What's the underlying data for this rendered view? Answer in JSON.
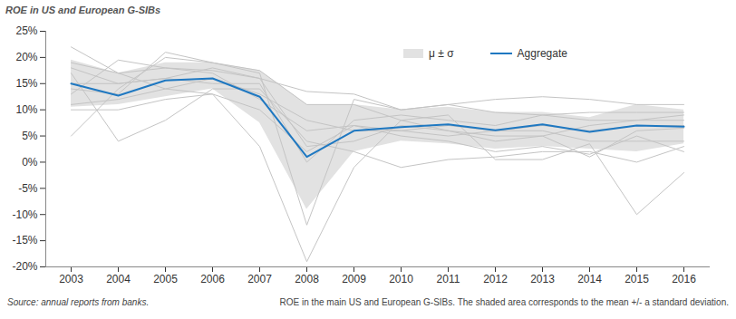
{
  "chart_data": {
    "type": "line",
    "title": "ROE in US and European G-SIBs",
    "source": "Source: annual reports from banks.",
    "caption": "ROE in the main US and European G-SIBs. The shaded area corresponds to the mean +/- a standard deviation.",
    "x": [
      2003,
      2004,
      2005,
      2006,
      2007,
      2008,
      2009,
      2010,
      2011,
      2012,
      2013,
      2014,
      2015,
      2016
    ],
    "ylim": [
      -20,
      25
    ],
    "yticks": [
      {
        "value": -20,
        "label": "-20%"
      },
      {
        "value": -15,
        "label": "-15%"
      },
      {
        "value": -10,
        "label": "-10%"
      },
      {
        "value": -5,
        "label": "-5%"
      },
      {
        "value": 0,
        "label": "0%"
      },
      {
        "value": 5,
        "label": "5%"
      },
      {
        "value": 10,
        "label": "10%"
      },
      {
        "value": 15,
        "label": "15%"
      },
      {
        "value": 20,
        "label": "20%"
      },
      {
        "value": 25,
        "label": "25%"
      }
    ],
    "grid": false,
    "legend": "top-right",
    "series": [
      {
        "name": "Aggregate",
        "color": "#1f78c1",
        "values": [
          15,
          12.7,
          15.6,
          16,
          12.5,
          1,
          6,
          6.7,
          7.2,
          6.1,
          7.2,
          5.8,
          7,
          6.8
        ]
      }
    ],
    "band": {
      "name": "μ ± σ",
      "color": "#e2e2e2",
      "lower": [
        10.5,
        11,
        12.5,
        14,
        7.5,
        -9,
        2,
        4,
        3.5,
        2.5,
        3,
        2.5,
        2,
        3.5
      ],
      "upper": [
        19.5,
        17,
        19,
        19,
        17.5,
        11,
        11,
        10,
        10.5,
        9.5,
        9.5,
        8.5,
        11,
        10
      ]
    },
    "banks": {
      "color": "#c4c4c4",
      "values": [
        [
          22,
          17,
          14,
          13,
          3,
          -19,
          -1,
          8,
          9,
          0.5,
          0.5,
          3.5,
          -10,
          -2
        ],
        [
          5,
          14,
          20,
          19,
          17,
          -12,
          12,
          10,
          11,
          12,
          12.5,
          12,
          11,
          11
        ],
        [
          13,
          19.5,
          18,
          17.5,
          16,
          13.5,
          13,
          10,
          11,
          9.5,
          9,
          9.5,
          9.5,
          9.5
        ],
        [
          17,
          4,
          8,
          14,
          14,
          4,
          2,
          -1,
          0.5,
          1,
          2,
          2,
          0,
          3
        ],
        [
          11,
          12,
          14,
          16,
          13,
          8,
          6,
          6,
          7,
          6,
          7,
          6,
          7,
          7
        ],
        [
          15,
          15,
          16,
          18,
          16,
          3,
          4,
          7,
          6,
          5,
          5,
          1,
          6,
          6.5
        ],
        [
          19,
          17,
          18,
          17,
          12,
          6,
          7,
          5,
          4,
          2,
          3,
          1.5,
          5,
          2
        ],
        [
          14,
          13,
          21,
          19,
          17.5,
          11,
          11,
          8,
          6,
          4,
          5,
          7,
          8,
          8
        ],
        [
          18,
          15,
          16,
          15,
          15,
          0,
          8,
          9,
          8,
          7,
          9,
          8,
          8,
          9
        ],
        [
          10,
          10,
          12,
          13,
          10,
          2,
          7,
          6,
          5,
          6,
          6,
          4,
          4,
          4
        ]
      ]
    }
  }
}
